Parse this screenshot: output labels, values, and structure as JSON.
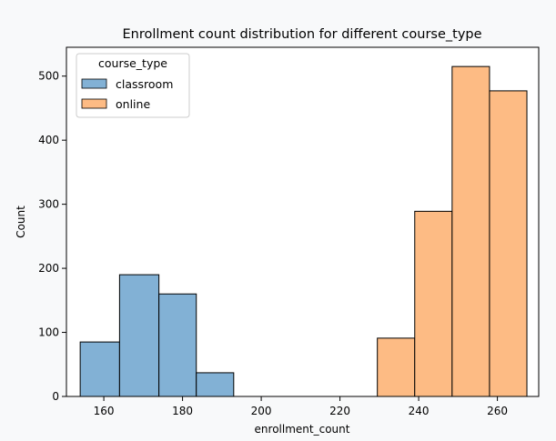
{
  "colors": {
    "figure_background": "#f8f9fa",
    "plot_background": "#ffffff",
    "classroom_fill": "#82b1d5",
    "online_fill": "#fdbb84",
    "edge": "#000000"
  },
  "chart_data": {
    "type": "bar",
    "subtype": "histogram",
    "title": "Enrollment count distribution for different course_type",
    "xlabel": "enrollment_count",
    "ylabel": "Count",
    "xlim": [
      150.5,
      270.5
    ],
    "ylim": [
      0,
      545
    ],
    "xticks": [
      160,
      180,
      200,
      220,
      240,
      260
    ],
    "yticks": [
      0,
      100,
      200,
      300,
      400,
      500
    ],
    "grid": false,
    "legend": {
      "title": "course_type",
      "placement": "top-left",
      "entries": [
        "classroom",
        "online"
      ]
    },
    "series": [
      {
        "name": "classroom",
        "color": "#82b1d5",
        "bins": [
          {
            "x0": 154,
            "x1": 164,
            "count": 85
          },
          {
            "x0": 164,
            "x1": 174,
            "count": 190
          },
          {
            "x0": 174,
            "x1": 183.5,
            "count": 160
          },
          {
            "x0": 183.5,
            "x1": 193,
            "count": 37
          }
        ]
      },
      {
        "name": "online",
        "color": "#fdbb84",
        "bins": [
          {
            "x0": 229.5,
            "x1": 239,
            "count": 91
          },
          {
            "x0": 239,
            "x1": 248.5,
            "count": 289
          },
          {
            "x0": 248.5,
            "x1": 258,
            "count": 515
          },
          {
            "x0": 258,
            "x1": 267.5,
            "count": 477
          }
        ]
      }
    ]
  }
}
